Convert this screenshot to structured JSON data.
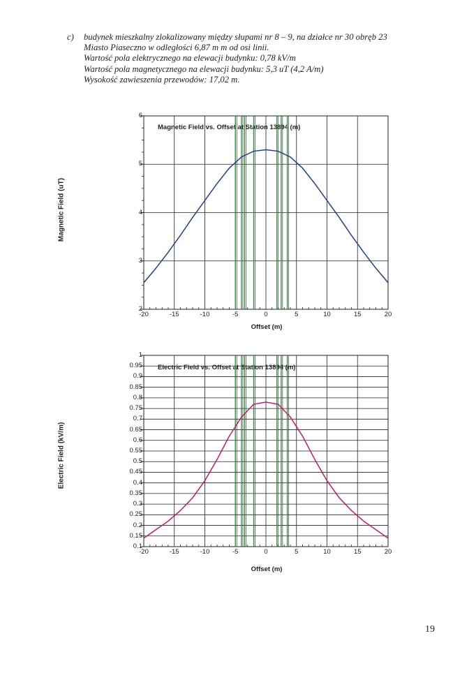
{
  "header": {
    "marker": "c)",
    "lines": [
      "budynek mieszkalny zlokalizowany między słupami nr 8 – 9, na działce nr 30 obręb 23",
      "Miasto Piaseczno w odległości 6,87 m m od osi linii.",
      "Wartość pola elektrycznego na elewacji budynku: 0,78 kV/m",
      "Wartość pola magnetycznego na elewacji budynku: 5,3 uT (4,2 A/m)",
      "Wysokość zawieszenia przewodów: 17,02 m."
    ]
  },
  "page_number": "19",
  "colors": {
    "magnetic": "#1f3f8f",
    "electric": "#c0186e",
    "conductor": "#2e8b3e",
    "grid": "#222222"
  },
  "chart_data": [
    {
      "type": "line",
      "title": "Magnetic Field vs. Offset at Station 13894 (m)",
      "xlabel": "Offset (m)",
      "ylabel": "Magnetic Field (uT)",
      "xlim": [
        -20,
        20
      ],
      "ylim": [
        2,
        6
      ],
      "x_ticks": [
        "-20",
        "-15",
        "-10",
        "-5",
        "0",
        "5",
        "10",
        "15",
        "20"
      ],
      "y_ticks": [
        "2",
        "3",
        "4",
        "5",
        "6"
      ],
      "conductor_offsets": [
        -5,
        -4,
        -3.5,
        -2,
        1.8,
        2.5,
        3.5
      ],
      "series": [
        {
          "x": [
            -20,
            -18,
            -16,
            -14,
            -12,
            -10,
            -8,
            -6,
            -4,
            -2,
            0,
            2,
            4,
            6,
            8,
            10,
            12,
            14,
            16,
            18,
            20
          ],
          "values": [
            2.55,
            2.85,
            3.18,
            3.53,
            3.9,
            4.25,
            4.6,
            4.92,
            5.15,
            5.27,
            5.3,
            5.27,
            5.15,
            4.92,
            4.6,
            4.25,
            3.9,
            3.53,
            3.18,
            2.85,
            2.55
          ]
        }
      ]
    },
    {
      "type": "line",
      "title": "Electric Field vs. Offset at Station 13894 (m)",
      "xlabel": "Offset (m)",
      "ylabel": "Electric Field (kV/m)",
      "xlim": [
        -20,
        20
      ],
      "ylim": [
        0.1,
        1
      ],
      "x_ticks": [
        "-20",
        "-15",
        "-10",
        "-5",
        "0",
        "5",
        "10",
        "15",
        "20"
      ],
      "y_ticks": [
        "0.1",
        "0.15",
        "0.2",
        "0.25",
        "0.3",
        "0.35",
        "0.4",
        "0.45",
        "0.5",
        "0.55",
        "0.6",
        "0.65",
        "0.7",
        "0.75",
        "0.8",
        "0.85",
        "0.9",
        "0.95",
        "1"
      ],
      "conductor_offsets": [
        -5,
        -4,
        -3.5,
        -2,
        1.8,
        2.5,
        3.5
      ],
      "series": [
        {
          "x": [
            -20,
            -18,
            -16,
            -14,
            -12,
            -10,
            -8,
            -6,
            -4,
            -2,
            0,
            2,
            4,
            6,
            8,
            10,
            12,
            14,
            16,
            18,
            20
          ],
          "values": [
            0.14,
            0.18,
            0.22,
            0.27,
            0.33,
            0.41,
            0.51,
            0.62,
            0.71,
            0.77,
            0.78,
            0.77,
            0.71,
            0.62,
            0.51,
            0.41,
            0.33,
            0.27,
            0.22,
            0.18,
            0.14
          ]
        }
      ]
    }
  ]
}
